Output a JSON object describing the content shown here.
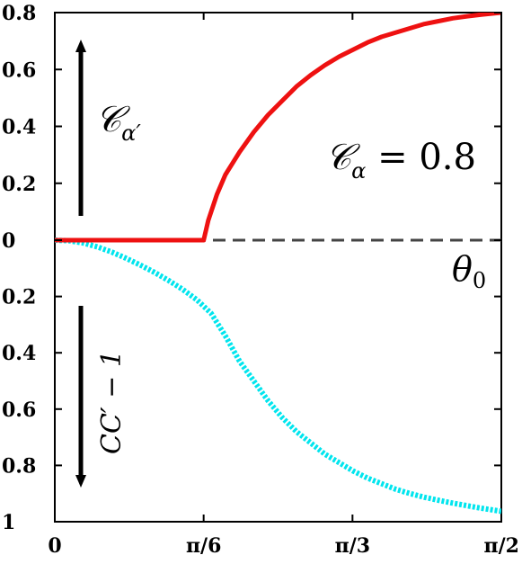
{
  "chart_data": {
    "type": "line",
    "x_tick_labels": [
      "0",
      "π/6",
      "π/3",
      "π/2"
    ],
    "x_ticks": [
      0,
      0.5236,
      1.0472,
      1.5708
    ],
    "xlim": [
      0,
      1.5708
    ],
    "y_tick_labels": [
      "0.8",
      "0.6",
      "0.4",
      "0.2",
      "0",
      "0.2",
      "0.4",
      "0.6",
      "0.8",
      "1"
    ],
    "y_ticks": [
      0.8,
      0.6,
      0.4,
      0.2,
      0,
      -0.2,
      -0.4,
      -0.6,
      -0.8,
      -1
    ],
    "ylim": [
      -1,
      0.8
    ],
    "grid": false,
    "series": [
      {
        "color": "#ee1111",
        "style": "solid",
        "x": [
          0,
          0.1,
          0.2,
          0.3,
          0.4,
          0.5,
          0.5236,
          0.54,
          0.57,
          0.6,
          0.65,
          0.7,
          0.75,
          0.8,
          0.85,
          0.9,
          0.95,
          1.0,
          1.05,
          1.1,
          1.15,
          1.2,
          1.25,
          1.3,
          1.35,
          1.4,
          1.45,
          1.5,
          1.5708
        ],
        "y": [
          0,
          0,
          0,
          0,
          0,
          0,
          0,
          0.07,
          0.16,
          0.23,
          0.31,
          0.38,
          0.44,
          0.49,
          0.54,
          0.58,
          0.615,
          0.645,
          0.67,
          0.695,
          0.715,
          0.73,
          0.745,
          0.76,
          0.77,
          0.78,
          0.787,
          0.793,
          0.8
        ]
      },
      {
        "color": "#00e5ee",
        "style": "dotted",
        "x": [
          0,
          0.05,
          0.1,
          0.15,
          0.2,
          0.25,
          0.3,
          0.35,
          0.4,
          0.45,
          0.5,
          0.55,
          0.6,
          0.65,
          0.7,
          0.75,
          0.8,
          0.85,
          0.9,
          0.95,
          1.0,
          1.05,
          1.1,
          1.15,
          1.2,
          1.25,
          1.3,
          1.35,
          1.4,
          1.45,
          1.5,
          1.5708
        ],
        "y": [
          0,
          -0.002,
          -0.01,
          -0.024,
          -0.042,
          -0.064,
          -0.088,
          -0.114,
          -0.143,
          -0.175,
          -0.212,
          -0.26,
          -0.34,
          -0.43,
          -0.5,
          -0.57,
          -0.63,
          -0.68,
          -0.72,
          -0.76,
          -0.79,
          -0.82,
          -0.845,
          -0.865,
          -0.885,
          -0.9,
          -0.913,
          -0.924,
          -0.934,
          -0.943,
          -0.952,
          -0.963
        ]
      },
      {
        "color": "#444444",
        "style": "dashed",
        "x": [
          0,
          1.5708
        ],
        "y": [
          0,
          0
        ]
      }
    ],
    "annotations": {
      "upper_label": "𝒞",
      "upper_label_sub": "α′",
      "value_label": "𝒞",
      "value_label_sub": "α",
      "value_label_eq": " = 0.8",
      "theta_label": "θ",
      "theta_sub": "0",
      "lower_label": "CC′ − 1"
    },
    "colors": {
      "axis": "#000000",
      "arrow": "#000000"
    }
  }
}
